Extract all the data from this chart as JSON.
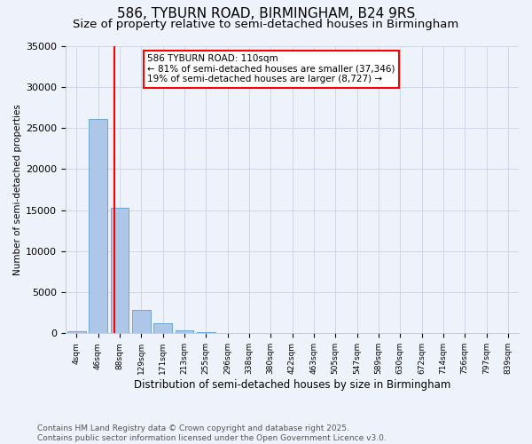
{
  "title1": "586, TYBURN ROAD, BIRMINGHAM, B24 9RS",
  "title2": "Size of property relative to semi-detached houses in Birmingham",
  "xlabel": "Distribution of semi-detached houses by size in Birmingham",
  "ylabel": "Number of semi-detached properties",
  "bin_labels": [
    "4sqm",
    "46sqm",
    "88sqm",
    "129sqm",
    "171sqm",
    "213sqm",
    "255sqm",
    "296sqm",
    "338sqm",
    "380sqm",
    "422sqm",
    "463sqm",
    "505sqm",
    "547sqm",
    "589sqm",
    "630sqm",
    "672sqm",
    "714sqm",
    "756sqm",
    "797sqm",
    "839sqm"
  ],
  "bar_values": [
    300,
    26100,
    15300,
    2900,
    1200,
    400,
    150,
    80,
    50,
    30,
    20,
    15,
    10,
    8,
    5,
    4,
    3,
    2,
    2,
    1,
    1
  ],
  "bar_color": "#aec6e8",
  "bar_edge_color": "#5a9fd4",
  "grid_color": "#d0d8e8",
  "background_color": "#eef2fa",
  "annotation_text": "586 TYBURN ROAD: 110sqm\n← 81% of semi-detached houses are smaller (37,346)\n19% of semi-detached houses are larger (8,727) →",
  "annotation_box_color": "white",
  "annotation_box_edge": "red",
  "vline_x": 1.75,
  "vline_color": "red",
  "ylim": [
    0,
    35000
  ],
  "yticks": [
    0,
    5000,
    10000,
    15000,
    20000,
    25000,
    30000,
    35000
  ],
  "footer": "Contains HM Land Registry data © Crown copyright and database right 2025.\nContains public sector information licensed under the Open Government Licence v3.0.",
  "title1_fontsize": 11,
  "title2_fontsize": 9.5,
  "annotation_fontsize": 7.5,
  "footer_fontsize": 6.5
}
